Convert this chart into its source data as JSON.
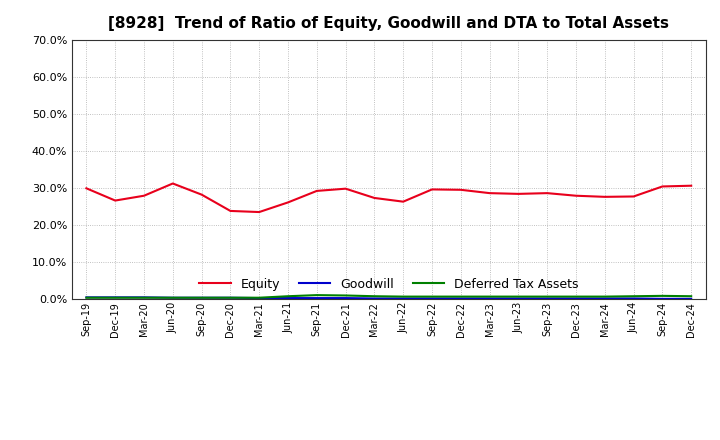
{
  "title": "[8928]  Trend of Ratio of Equity, Goodwill and DTA to Total Assets",
  "x_labels": [
    "Sep-19",
    "Dec-19",
    "Mar-20",
    "Jun-20",
    "Sep-20",
    "Dec-20",
    "Mar-21",
    "Jun-21",
    "Sep-21",
    "Dec-21",
    "Mar-22",
    "Jun-22",
    "Sep-22",
    "Dec-22",
    "Mar-23",
    "Jun-23",
    "Sep-23",
    "Dec-23",
    "Mar-24",
    "Jun-24",
    "Sep-24",
    "Dec-24"
  ],
  "equity": [
    0.299,
    0.266,
    0.279,
    0.312,
    0.282,
    0.238,
    0.235,
    0.261,
    0.292,
    0.298,
    0.273,
    0.263,
    0.296,
    0.295,
    0.286,
    0.284,
    0.286,
    0.279,
    0.276,
    0.277,
    0.304,
    0.306
  ],
  "goodwill": [
    0.005,
    0.005,
    0.005,
    0.004,
    0.004,
    0.004,
    0.003,
    0.003,
    0.003,
    0.003,
    0.002,
    0.002,
    0.002,
    0.002,
    0.002,
    0.002,
    0.002,
    0.002,
    0.002,
    0.002,
    0.001,
    0.001
  ],
  "dta": [
    0.004,
    0.004,
    0.004,
    0.004,
    0.004,
    0.004,
    0.004,
    0.008,
    0.011,
    0.01,
    0.008,
    0.007,
    0.007,
    0.007,
    0.007,
    0.007,
    0.007,
    0.007,
    0.007,
    0.008,
    0.009,
    0.008
  ],
  "equity_color": "#e8001c",
  "goodwill_color": "#0000cc",
  "dta_color": "#008000",
  "ylim": [
    0.0,
    0.7
  ],
  "yticks": [
    0.0,
    0.1,
    0.2,
    0.3,
    0.4,
    0.5,
    0.6,
    0.7
  ],
  "bg_color": "#ffffff",
  "plot_bg_color": "#ffffff",
  "grid_color": "#999999",
  "title_fontsize": 11,
  "legend_labels": [
    "Equity",
    "Goodwill",
    "Deferred Tax Assets"
  ]
}
